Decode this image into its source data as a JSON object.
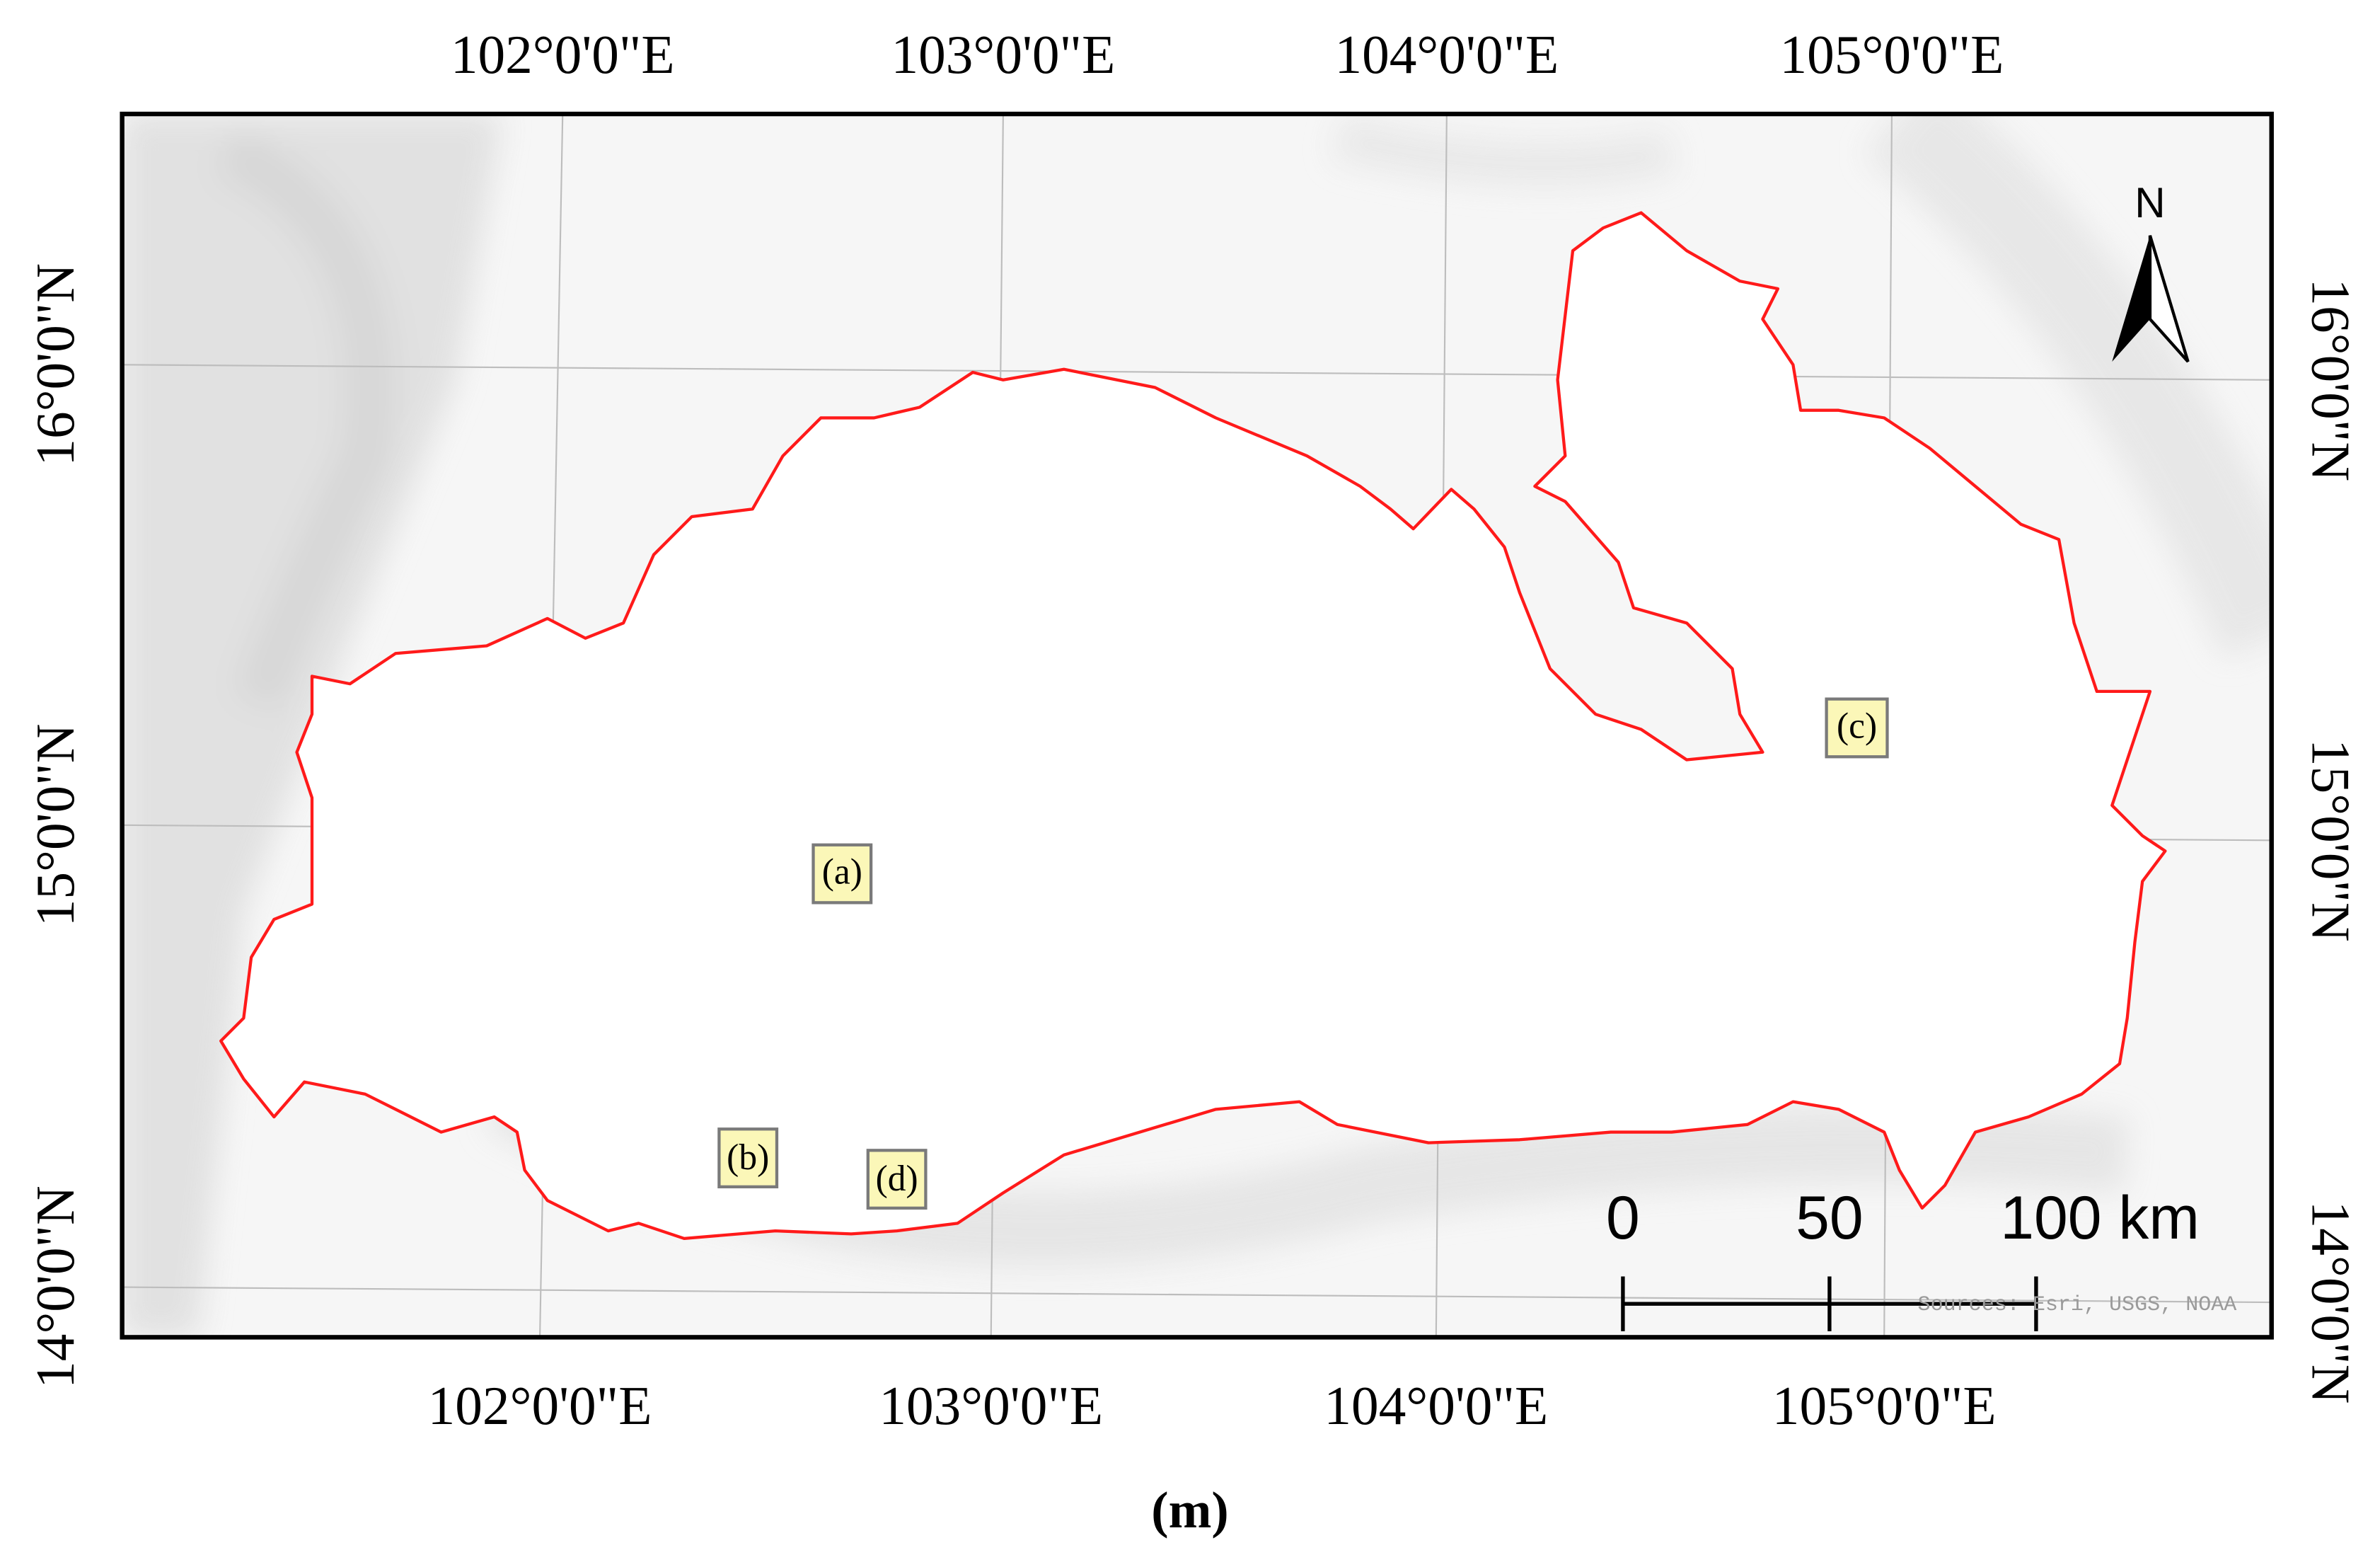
{
  "graticule": {
    "top_labels": [
      "102°0'0\"E",
      "103°0'0\"E",
      "104°0'0\"E",
      "105°0'0\"E"
    ],
    "bottom_labels": [
      "102°0'0\"E",
      "103°0'0\"E",
      "104°0'0\"E",
      "105°0'0\"E"
    ],
    "left_labels": [
      "16°0'0\"N",
      "15°0'0\"N",
      "14°0'0\"N"
    ],
    "right_labels": [
      "16°0'0\"N",
      "15°0'0\"N",
      "14°0'0\"N"
    ]
  },
  "north_arrow": "N",
  "scale_bar": {
    "labels": [
      "0",
      "50",
      "100 km"
    ]
  },
  "attribution": "Sources: Esri, USGS, NOAA",
  "site_labels": [
    "(a)",
    "(b)",
    "(c)",
    "(d)"
  ],
  "caption": "(m)"
}
